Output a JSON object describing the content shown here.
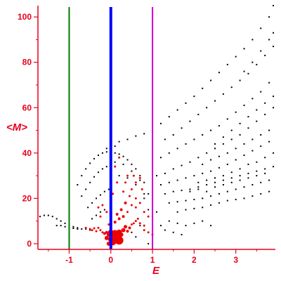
{
  "chart_data": {
    "type": "scatter",
    "title": "",
    "xlabel": "E",
    "ylabel": "<M>",
    "xlim": [
      -1.75,
      3.95
    ],
    "ylim": [
      -2.5,
      105
    ],
    "x_ticks": [
      -1,
      0,
      1,
      2,
      3
    ],
    "y_ticks": [
      0,
      20,
      40,
      60,
      80,
      100
    ],
    "grid": false,
    "legend": "none",
    "colors": {
      "axis": "#e8001c",
      "black_points": "#000000",
      "red_points": "#ee0000",
      "line_green": "#007a00",
      "line_blue": "#0000ff",
      "line_magenta": "#d000d0"
    },
    "vertical_lines": [
      {
        "x": -1,
        "color": "#007a00"
      },
      {
        "x": 0,
        "color": "#0000ff"
      },
      {
        "x": 1,
        "color": "#d000d0"
      }
    ],
    "series": [
      {
        "color": "#000000",
        "points": [
          [
            -1.7,
            12
          ],
          [
            -1.6,
            12.5
          ],
          [
            -1.5,
            12.5
          ],
          [
            -1.4,
            12
          ],
          [
            -1.3,
            11
          ],
          [
            -1.2,
            10
          ],
          [
            -1.1,
            9
          ],
          [
            -1.0,
            8
          ],
          [
            -0.9,
            7.5
          ],
          [
            -0.8,
            7
          ],
          [
            -0.7,
            6.5
          ],
          [
            -0.6,
            6.5
          ],
          [
            -0.5,
            6
          ],
          [
            -1.3,
            8
          ],
          [
            -1.2,
            8
          ],
          [
            -1.1,
            7.5
          ],
          [
            -1.0,
            7
          ],
          [
            -0.9,
            6.8
          ],
          [
            -0.8,
            6.5
          ],
          [
            -0.8,
            26
          ],
          [
            -0.7,
            30
          ],
          [
            -0.6,
            33
          ],
          [
            -0.5,
            35.5
          ],
          [
            -0.4,
            37.5
          ],
          [
            -0.3,
            39
          ],
          [
            -0.2,
            40
          ],
          [
            -0.1,
            40.5
          ],
          [
            -0.7,
            21
          ],
          [
            -0.6,
            24
          ],
          [
            -0.5,
            27
          ],
          [
            -0.4,
            29.5
          ],
          [
            -0.3,
            31.5
          ],
          [
            -0.2,
            33
          ],
          [
            -0.1,
            34
          ],
          [
            -0.55,
            16
          ],
          [
            -0.45,
            18
          ],
          [
            -0.35,
            20
          ],
          [
            -0.25,
            21.5
          ],
          [
            -0.15,
            23
          ],
          [
            -0.05,
            24
          ],
          [
            -0.45,
            11
          ],
          [
            -0.35,
            12.5
          ],
          [
            -0.25,
            14
          ],
          [
            -0.15,
            15
          ],
          [
            0.1,
            40
          ],
          [
            0.2,
            39.5
          ],
          [
            0.3,
            38.5
          ],
          [
            0.4,
            37
          ],
          [
            0.5,
            35
          ],
          [
            0.6,
            33
          ],
          [
            0.7,
            30
          ],
          [
            0.8,
            27
          ],
          [
            0.1,
            36
          ],
          [
            0.3,
            35
          ],
          [
            0.5,
            32
          ],
          [
            0.7,
            28
          ],
          [
            0.9,
            22
          ],
          [
            0.2,
            30
          ],
          [
            0.4,
            29
          ],
          [
            0.6,
            26
          ],
          [
            0.8,
            22
          ],
          [
            0.8,
            20
          ],
          [
            0.9,
            15
          ],
          [
            1.1,
            14
          ],
          [
            1.2,
            8
          ],
          [
            1.4,
            10
          ],
          [
            1.6,
            9
          ],
          [
            1.8,
            8
          ],
          [
            2.0,
            9
          ],
          [
            2.2,
            10
          ],
          [
            2.4,
            8
          ],
          [
            1.3,
            6
          ],
          [
            1.5,
            5
          ],
          [
            1.7,
            4
          ],
          [
            0.9,
            0
          ],
          [
            0.6,
            3
          ],
          [
            0.5,
            5
          ],
          [
            0.7,
            8
          ],
          [
            1.0,
            12
          ],
          [
            0.2,
            45
          ],
          [
            0.4,
            46
          ],
          [
            0.6,
            47.5
          ],
          [
            0.8,
            48.5
          ],
          [
            1.0,
            49.5
          ],
          [
            0.0,
            41
          ],
          [
            -0.1,
            42
          ],
          [
            0.1,
            43
          ],
          [
            1.2,
            53
          ],
          [
            1.4,
            56
          ],
          [
            1.6,
            59
          ],
          [
            1.8,
            62
          ],
          [
            2.0,
            65
          ],
          [
            2.2,
            68.5
          ],
          [
            2.4,
            72
          ],
          [
            2.6,
            75.5
          ],
          [
            2.8,
            79
          ],
          [
            3.0,
            82.5
          ],
          [
            3.2,
            86
          ],
          [
            3.4,
            90
          ],
          [
            3.6,
            95
          ],
          [
            3.8,
            100
          ],
          [
            3.9,
            105
          ],
          [
            1.3,
            46
          ],
          [
            1.5,
            48
          ],
          [
            1.7,
            51
          ],
          [
            1.9,
            54
          ],
          [
            2.1,
            57
          ],
          [
            2.3,
            60
          ],
          [
            2.5,
            63
          ],
          [
            2.7,
            66
          ],
          [
            2.9,
            69
          ],
          [
            3.1,
            72
          ],
          [
            3.3,
            75
          ],
          [
            3.5,
            79
          ],
          [
            3.7,
            83
          ],
          [
            3.9,
            87
          ],
          [
            1.2,
            38
          ],
          [
            1.4,
            40
          ],
          [
            1.6,
            42
          ],
          [
            1.8,
            44
          ],
          [
            2.0,
            46
          ],
          [
            2.2,
            48
          ],
          [
            2.4,
            50
          ],
          [
            2.6,
            52
          ],
          [
            2.8,
            55
          ],
          [
            3.0,
            58
          ],
          [
            3.2,
            61
          ],
          [
            3.4,
            64
          ],
          [
            3.6,
            67
          ],
          [
            3.8,
            71
          ],
          [
            1.1,
            30
          ],
          [
            1.3,
            31
          ],
          [
            1.5,
            33
          ],
          [
            1.7,
            34.5
          ],
          [
            1.9,
            36
          ],
          [
            2.1,
            38
          ],
          [
            2.3,
            40
          ],
          [
            2.5,
            42
          ],
          [
            2.7,
            44
          ],
          [
            2.9,
            46
          ],
          [
            3.1,
            48
          ],
          [
            3.3,
            51
          ],
          [
            3.5,
            54
          ],
          [
            3.7,
            57
          ],
          [
            3.9,
            60
          ],
          [
            1.2,
            26
          ],
          [
            1.4,
            27
          ],
          [
            1.6,
            28
          ],
          [
            1.8,
            29
          ],
          [
            2.0,
            30
          ],
          [
            2.2,
            31
          ],
          [
            2.4,
            32
          ],
          [
            2.6,
            33.5
          ],
          [
            2.8,
            35
          ],
          [
            3.0,
            37
          ],
          [
            3.2,
            39
          ],
          [
            3.4,
            41
          ],
          [
            3.6,
            43
          ],
          [
            3.8,
            45
          ],
          [
            1.3,
            22
          ],
          [
            1.5,
            23
          ],
          [
            1.7,
            23.5
          ],
          [
            1.9,
            24
          ],
          [
            2.1,
            25
          ],
          [
            2.3,
            26
          ],
          [
            2.5,
            27
          ],
          [
            2.7,
            28
          ],
          [
            2.9,
            29
          ],
          [
            3.1,
            30
          ],
          [
            3.3,
            31
          ],
          [
            3.5,
            32
          ],
          [
            3.7,
            33
          ],
          [
            3.9,
            34
          ],
          [
            1.4,
            18
          ],
          [
            1.6,
            18.5
          ],
          [
            1.8,
            19
          ],
          [
            2.0,
            19.5
          ],
          [
            2.2,
            20
          ],
          [
            2.4,
            21
          ],
          [
            2.6,
            22
          ],
          [
            2.8,
            23
          ],
          [
            3.0,
            24
          ],
          [
            3.2,
            25
          ],
          [
            3.4,
            26
          ],
          [
            3.6,
            27
          ],
          [
            3.8,
            28
          ],
          [
            1.6,
            14
          ],
          [
            1.8,
            15
          ],
          [
            2.0,
            15.5
          ],
          [
            2.2,
            16
          ],
          [
            2.4,
            17
          ],
          [
            2.6,
            18
          ],
          [
            2.8,
            19
          ],
          [
            3.0,
            19.5
          ],
          [
            3.2,
            20
          ],
          [
            3.4,
            21
          ],
          [
            3.6,
            22
          ],
          [
            3.8,
            23
          ],
          [
            2.5,
            44
          ],
          [
            2.7,
            47
          ],
          [
            2.9,
            50
          ],
          [
            3.1,
            53
          ],
          [
            3.3,
            56
          ],
          [
            3.5,
            59
          ],
          [
            3.7,
            62
          ],
          [
            3.9,
            65
          ],
          [
            2.2,
            35
          ],
          [
            2.4,
            37
          ],
          [
            2.6,
            38.5
          ],
          [
            2.8,
            40
          ],
          [
            3.0,
            42
          ],
          [
            3.2,
            44
          ],
          [
            3.4,
            46
          ],
          [
            3.6,
            48
          ],
          [
            3.8,
            50
          ],
          [
            2.1,
            27
          ],
          [
            2.3,
            28
          ],
          [
            2.5,
            29
          ],
          [
            2.7,
            30
          ],
          [
            2.9,
            31.5
          ],
          [
            3.1,
            33
          ],
          [
            3.3,
            35
          ],
          [
            3.5,
            36
          ],
          [
            3.7,
            38
          ],
          [
            3.9,
            40
          ],
          [
            3.2,
            76
          ],
          [
            3.4,
            80
          ],
          [
            3.6,
            85
          ],
          [
            3.8,
            90
          ],
          [
            3.9,
            93
          ],
          [
            1.9,
            23
          ],
          [
            2.1,
            24
          ],
          [
            2.3,
            23
          ],
          [
            2.5,
            25
          ],
          [
            2.7,
            26
          ],
          [
            2.9,
            27
          ],
          [
            3.1,
            28
          ],
          [
            3.3,
            29
          ],
          [
            3.5,
            30
          ],
          [
            3.7,
            31
          ]
        ]
      },
      {
        "color": "#ee0000",
        "points": [
          [
            -0.6,
            7,
            1.5
          ],
          [
            -0.5,
            6.5,
            1.5
          ],
          [
            -0.45,
            6,
            1.5
          ],
          [
            -0.4,
            6.8,
            1.5
          ],
          [
            -0.35,
            5.5,
            1.5
          ],
          [
            -0.3,
            7,
            1.5
          ],
          [
            -0.25,
            6,
            1.5
          ],
          [
            -0.2,
            5,
            1.5
          ],
          [
            -0.15,
            4.5,
            2
          ],
          [
            -0.1,
            5,
            2
          ],
          [
            -0.05,
            4,
            3
          ],
          [
            0.0,
            5,
            4
          ],
          [
            0.05,
            3.5,
            5
          ],
          [
            0.1,
            4.5,
            5
          ],
          [
            0.15,
            3,
            5
          ],
          [
            0.2,
            5,
            4
          ],
          [
            0.25,
            4,
            3
          ],
          [
            0.3,
            6,
            3
          ],
          [
            0.35,
            7.5,
            2.5
          ],
          [
            0.4,
            5.5,
            2
          ],
          [
            0.45,
            7,
            2
          ],
          [
            0.5,
            8.5,
            1.5
          ],
          [
            0.55,
            9,
            1.5
          ],
          [
            0.6,
            10,
            1.5
          ],
          [
            0.7,
            9,
            1.5
          ],
          [
            0.8,
            8,
            1.5
          ],
          [
            -0.1,
            2.5,
            3
          ],
          [
            0.0,
            2,
            4
          ],
          [
            0.1,
            1.5,
            5
          ],
          [
            0.2,
            1.5,
            6
          ],
          [
            0.05,
            0.5,
            4
          ],
          [
            -0.05,
            0,
            3
          ],
          [
            -0.05,
            8.5,
            1.5
          ],
          [
            0.1,
            9.5,
            2
          ],
          [
            0.2,
            11,
            2
          ],
          [
            0.15,
            13,
            2
          ],
          [
            0.3,
            12,
            2
          ],
          [
            0.25,
            15,
            2
          ],
          [
            0.4,
            14,
            1.5
          ],
          [
            0.35,
            18,
            2
          ],
          [
            0.5,
            17,
            1.5
          ],
          [
            0.45,
            21,
            1.5
          ],
          [
            0.3,
            23,
            1.5
          ],
          [
            0.5,
            24,
            1.5
          ],
          [
            0.6,
            20,
            1.5
          ],
          [
            0.7,
            18,
            1.5
          ],
          [
            0.8,
            14,
            1.5
          ],
          [
            0.6,
            27,
            1.5
          ],
          [
            0.7,
            29,
            1.5
          ],
          [
            0.4,
            30,
            1.5
          ],
          [
            0.2,
            38,
            1.5
          ],
          [
            0.1,
            34,
            1.5
          ],
          [
            0.0,
            31,
            1.5
          ],
          [
            0.15,
            27,
            1.5
          ],
          [
            0.05,
            22,
            1.5
          ],
          [
            -0.3,
            16,
            1.5
          ],
          [
            -0.2,
            17,
            1.5
          ],
          [
            -0.1,
            14,
            1.5
          ],
          [
            -0.25,
            12,
            1.5
          ],
          [
            0.6,
            16,
            1.5
          ],
          [
            0.65,
            11,
            1.5
          ],
          [
            0.8,
            6,
            1.5
          ],
          [
            0.9,
            5,
            1.5
          ],
          [
            1.0,
            4,
            1.5
          ],
          [
            0.9,
            12,
            1.5
          ],
          [
            0.75,
            24,
            1.5
          ],
          [
            0.55,
            30,
            1.5
          ],
          [
            0.35,
            27,
            1.5
          ]
        ]
      }
    ]
  }
}
